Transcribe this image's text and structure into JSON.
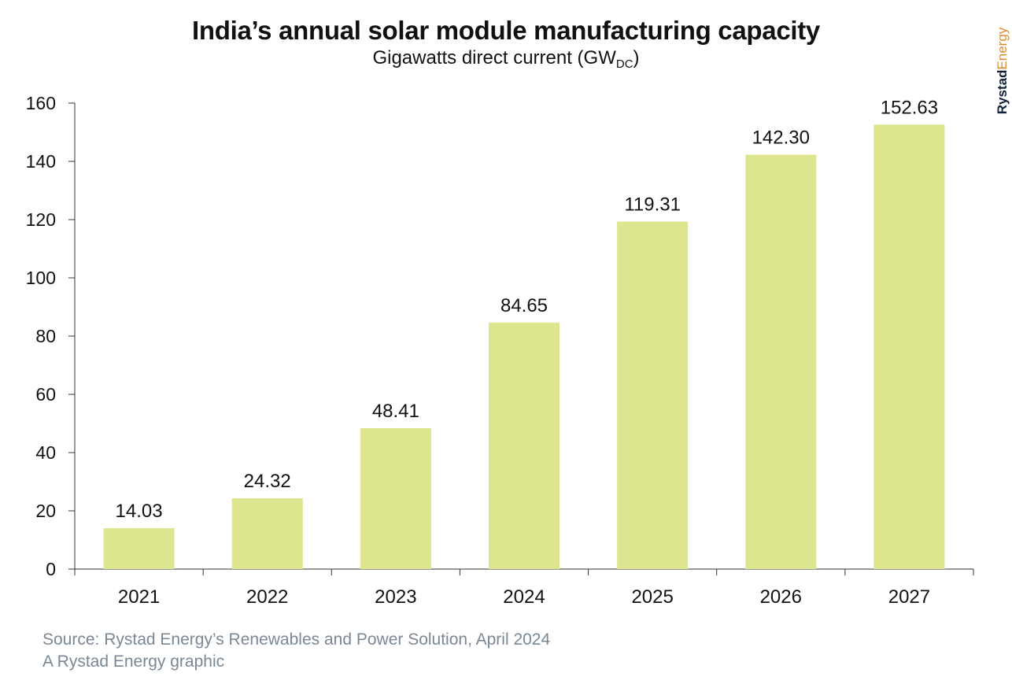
{
  "chart_data": {
    "type": "bar",
    "title": "India’s annual solar module manufacturing capacity",
    "subtitle_main": "Gigawatts direct current (GW",
    "subtitle_sub": "DC",
    "subtitle_end": ")",
    "xlabel": "",
    "ylabel": "",
    "categories": [
      "2021",
      "2022",
      "2023",
      "2024",
      "2025",
      "2026",
      "2027"
    ],
    "values": [
      14.03,
      24.32,
      48.41,
      84.65,
      119.31,
      142.3,
      152.63
    ],
    "value_labels": [
      "14.03",
      "24.32",
      "48.41",
      "84.65",
      "119.31",
      "142.30",
      "152.63"
    ],
    "ylim": [
      0,
      160
    ],
    "yticks": [
      "0",
      "20",
      "40",
      "60",
      "80",
      "100",
      "120",
      "140",
      "160"
    ],
    "grid": false,
    "bar_color": "#dde58f"
  },
  "brand": {
    "part1": "Rystad",
    "part2": "Energy"
  },
  "footer": {
    "source": "Source: Rystad Energy’s Renewables and Power Solution, April 2024",
    "credit": "A Rystad Energy graphic"
  }
}
